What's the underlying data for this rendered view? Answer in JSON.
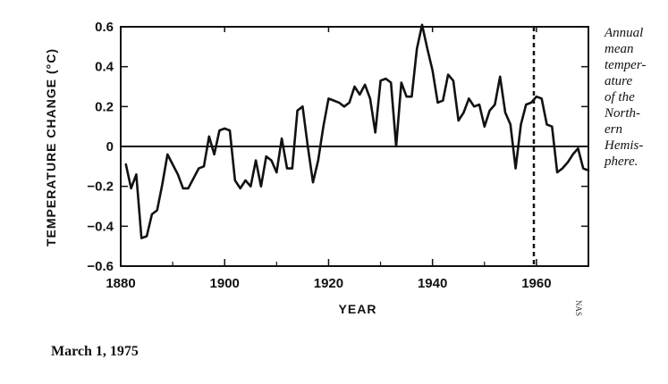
{
  "chart_data": {
    "type": "line",
    "xlabel": "YEAR",
    "ylabel": "TEMPERATURE CHANGE (°C)",
    "xlim": [
      1880,
      1970
    ],
    "ylim": [
      -0.6,
      0.6
    ],
    "x_ticks": [
      1880,
      1900,
      1920,
      1940,
      1960
    ],
    "x_tick_labels": [
      "1880",
      "1900",
      "1920",
      "1940",
      "1960"
    ],
    "y_ticks": [
      0.6,
      0.4,
      0.2,
      0,
      -0.2,
      -0.4,
      -0.6
    ],
    "y_tick_labels": [
      "0.6",
      "0.4",
      "0.2",
      "0",
      "−0.2",
      "−0.4",
      "−0.6"
    ],
    "zero_line": 0,
    "reference_line_x": 1959.5,
    "grid": false,
    "line_color": "#111111",
    "series": [
      {
        "x": [
          1881,
          1882,
          1883,
          1884,
          1885,
          1886,
          1887,
          1888,
          1889,
          1890,
          1891,
          1892,
          1893,
          1894,
          1895,
          1896,
          1897,
          1898,
          1899,
          1900,
          1901,
          1902,
          1903,
          1904,
          1905,
          1906,
          1907,
          1908,
          1909,
          1910,
          1911,
          1912,
          1913,
          1914,
          1915,
          1916,
          1917,
          1918,
          1919,
          1920,
          1921,
          1922,
          1923,
          1924,
          1925,
          1926,
          1927,
          1928,
          1929,
          1930,
          1931,
          1932,
          1933,
          1934,
          1935,
          1936,
          1937,
          1938,
          1939,
          1940,
          1941,
          1942,
          1943,
          1944,
          1945,
          1946,
          1947,
          1948,
          1949,
          1950,
          1951,
          1952,
          1953,
          1954,
          1955,
          1956,
          1957,
          1958,
          1959,
          1960,
          1961,
          1962,
          1963,
          1964,
          1965,
          1966,
          1967,
          1968,
          1969,
          1970
        ],
        "y": [
          -0.09,
          -0.21,
          -0.14,
          -0.46,
          -0.45,
          -0.34,
          -0.32,
          -0.19,
          -0.04,
          -0.09,
          -0.14,
          -0.21,
          -0.21,
          -0.16,
          -0.11,
          -0.1,
          0.05,
          -0.04,
          0.08,
          0.09,
          0.08,
          -0.17,
          -0.21,
          -0.17,
          -0.2,
          -0.07,
          -0.2,
          -0.05,
          -0.07,
          -0.13,
          0.04,
          -0.11,
          -0.11,
          0.18,
          0.2,
          0.0,
          -0.18,
          -0.07,
          0.1,
          0.24,
          0.23,
          0.22,
          0.2,
          0.22,
          0.3,
          0.26,
          0.31,
          0.24,
          0.07,
          0.33,
          0.34,
          0.32,
          0.0,
          0.32,
          0.25,
          0.25,
          0.49,
          0.61,
          0.49,
          0.38,
          0.22,
          0.23,
          0.36,
          0.33,
          0.13,
          0.17,
          0.24,
          0.2,
          0.21,
          0.1,
          0.18,
          0.21,
          0.35,
          0.17,
          0.11,
          -0.11,
          0.11,
          0.21,
          0.22,
          0.25,
          0.24,
          0.11,
          0.1,
          -0.13,
          -0.11,
          -0.08,
          -0.04,
          -0.01,
          -0.11,
          -0.12
        ]
      }
    ]
  },
  "caption": {
    "lines": [
      "Annual",
      "mean",
      "temper-",
      "ature",
      "of the",
      "North-",
      "ern",
      "Hemis-",
      "phere."
    ]
  },
  "side_mark": "NAS",
  "date_line": "March 1, 1975"
}
